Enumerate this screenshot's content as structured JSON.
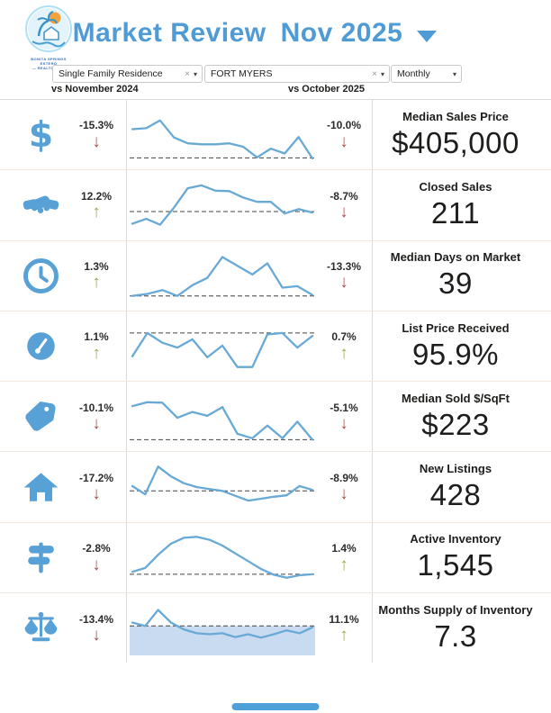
{
  "logo": {
    "line1": "BONITA SPRINGS ESTERO",
    "line2": "— REALTORS —"
  },
  "header": {
    "title": "Market Review",
    "period": "Nov 2025"
  },
  "filters": {
    "property_type": {
      "value": "Single Family Residence"
    },
    "location": {
      "value": "FORT MYERS"
    },
    "frequency": {
      "value": "Monthly"
    }
  },
  "compare": {
    "left": "vs November 2024",
    "right": "vs October 2025"
  },
  "glyphs": {
    "clear": "×",
    "caret": "▾",
    "arrow_up": "↑",
    "arrow_down": "↓"
  },
  "colors": {
    "accent_blue": "#4f9bd5",
    "icon_blue": "#58a1d6",
    "spark_line": "#68a9d6",
    "down_red": "#a8524e",
    "up_green": "#96ad56",
    "shade_blue": "#c9dbf0"
  },
  "metrics": [
    {
      "icon": "dollar",
      "label": "Median Sales Price",
      "value": "$405,000",
      "yoy_pct": "-15.3%",
      "yoy_dir": "down",
      "mom_pct": "-10.0%",
      "mom_dir": "down",
      "spark": {
        "points": [
          62,
          64,
          80,
          45,
          33,
          31,
          31,
          33,
          26,
          4,
          22,
          12,
          46,
          2
        ],
        "baseline": 3
      }
    },
    {
      "icon": "handshake",
      "label": "Closed Sales",
      "value": "211",
      "yoy_pct": "12.2%",
      "yoy_dir": "up",
      "mom_pct": "-8.7%",
      "mom_dir": "down",
      "spark": {
        "points": [
          12,
          22,
          10,
          45,
          85,
          91,
          80,
          79,
          66,
          57,
          57,
          33,
          42,
          35
        ],
        "baseline": 37
      }
    },
    {
      "icon": "clock",
      "label": "Median Days on Market",
      "value": "39",
      "yoy_pct": "1.3%",
      "yoy_dir": "up",
      "mom_pct": "-13.3%",
      "mom_dir": "down",
      "spark": {
        "points": [
          8,
          12,
          20,
          8,
          30,
          45,
          88,
          70,
          52,
          75,
          25,
          28,
          10
        ],
        "baseline": 8
      }
    },
    {
      "icon": "gauge",
      "label": "List Price Received",
      "value": "95.9%",
      "yoy_pct": "1.1%",
      "yoy_dir": "up",
      "mom_pct": "0.7%",
      "mom_dir": "up",
      "spark": {
        "points": [
          30,
          78,
          58,
          48,
          65,
          28,
          52,
          8,
          8,
          75,
          78,
          48,
          72
        ],
        "baseline": 78
      }
    },
    {
      "icon": "tag",
      "label": "Median Sold $/SqFt",
      "value": "$223",
      "yoy_pct": "-10.1%",
      "yoy_dir": "down",
      "mom_pct": "-5.1%",
      "mom_dir": "down",
      "spark": {
        "points": [
          72,
          80,
          79,
          48,
          60,
          52,
          70,
          15,
          6,
          32,
          6,
          40,
          3
        ],
        "baseline": 3
      }
    },
    {
      "icon": "house",
      "label": "New Listings",
      "value": "428",
      "yoy_pct": "-17.2%",
      "yoy_dir": "down",
      "mom_pct": "-8.9%",
      "mom_dir": "down",
      "spark": {
        "points": [
          52,
          35,
          92,
          72,
          58,
          50,
          46,
          42,
          32,
          22,
          26,
          30,
          33,
          52,
          44
        ],
        "baseline": 42
      }
    },
    {
      "icon": "signpost",
      "label": "Active Inventory",
      "value": "1,545",
      "yoy_pct": "-2.8%",
      "yoy_dir": "down",
      "mom_pct": "1.4%",
      "mom_dir": "up",
      "spark": {
        "points": [
          20,
          28,
          55,
          78,
          90,
          92,
          86,
          74,
          58,
          42,
          26,
          14,
          8,
          13,
          15
        ],
        "baseline": 15
      }
    },
    {
      "icon": "scales",
      "label": "Months Supply of Inventory",
      "value": "7.3",
      "yoy_pct": "-13.4%",
      "yoy_dir": "down",
      "mom_pct": "11.1%",
      "mom_dir": "up",
      "spark": {
        "points": [
          62,
          55,
          88,
          62,
          48,
          40,
          38,
          40,
          32,
          38,
          31,
          38,
          46,
          40,
          52
        ],
        "baseline": 55,
        "fill_below_baseline": true
      }
    }
  ]
}
